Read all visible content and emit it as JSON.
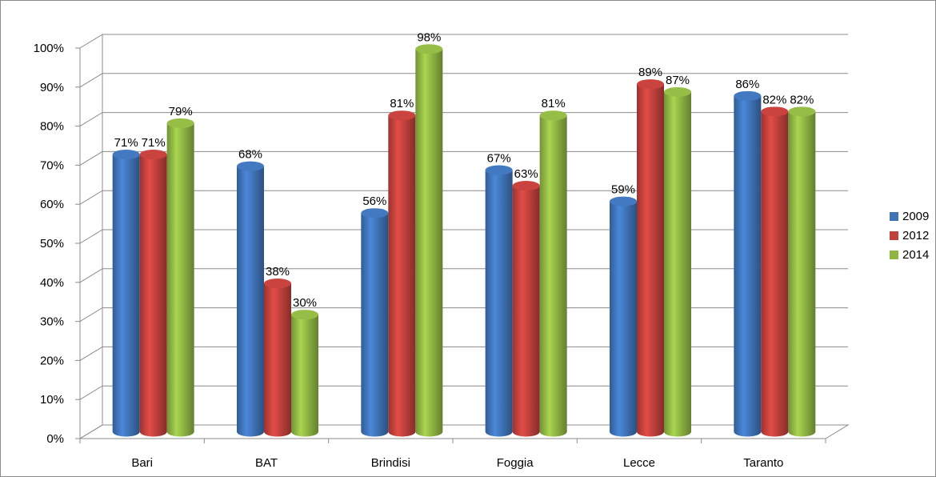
{
  "chart_data": {
    "type": "bar",
    "title": "",
    "categories": [
      "Bari",
      "BAT",
      "Brindisi",
      "Foggia",
      "Lecce",
      "Taranto"
    ],
    "series": [
      {
        "name": "2009",
        "color": "#3f73b8",
        "values": [
          71,
          68,
          56,
          67,
          59,
          86
        ],
        "labels": [
          "71%",
          "68%",
          "56%",
          "67%",
          "59%",
          "86%"
        ]
      },
      {
        "name": "2012",
        "color": "#c0403c",
        "values": [
          71,
          38,
          81,
          63,
          89,
          82
        ],
        "labels": [
          "71%",
          "38%",
          "81%",
          "63%",
          "89%",
          "82%"
        ]
      },
      {
        "name": "2014",
        "color": "#8fb543",
        "values": [
          79,
          30,
          98,
          81,
          87,
          82
        ],
        "labels": [
          "79%",
          "30%",
          "98%",
          "81%",
          "87%",
          "82%"
        ]
      }
    ],
    "yticks": [
      "0%",
      "10%",
      "20%",
      "30%",
      "40%",
      "50%",
      "60%",
      "70%",
      "80%",
      "90%",
      "100%"
    ],
    "ylim": [
      0,
      100
    ],
    "grid": true,
    "legend": "right",
    "style": "3d-cylinder"
  }
}
